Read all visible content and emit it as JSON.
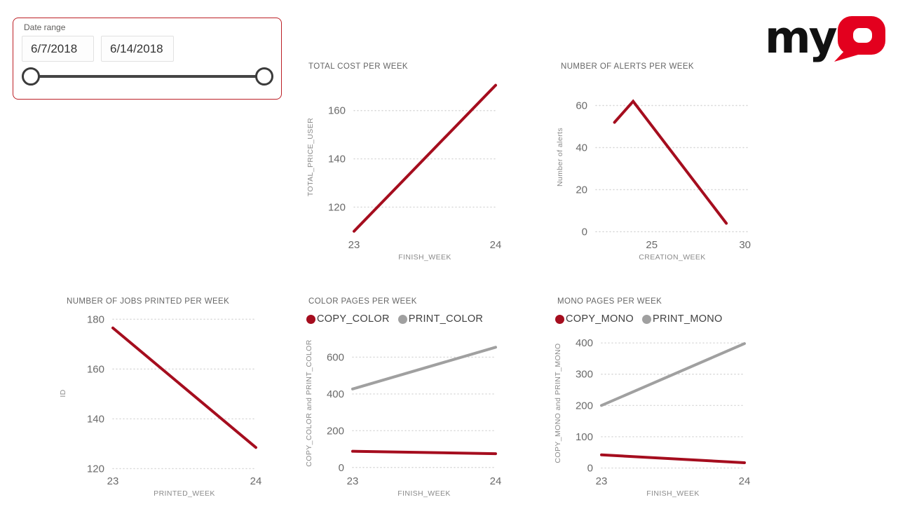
{
  "slicer": {
    "label": "Date range",
    "start_value": "6/7/2018",
    "end_value": "6/14/2018",
    "border_color": "#bc2026"
  },
  "logo": {
    "text_my": "my",
    "text_q": "Q",
    "my_color": "#111111",
    "q_color": "#e3001e"
  },
  "colors": {
    "accent_red": "#a50d1e",
    "series_gray": "#a0a0a0",
    "gridline": "#d6d6d6",
    "title_text": "#666666",
    "tick_text": "#6a6a6a",
    "axis_label_text": "#8a8a8a"
  },
  "chart_data": [
    {
      "id": "total-cost",
      "type": "line",
      "title": "TOTAL COST PER WEEK",
      "xlabel": "FINISH_WEEK",
      "ylabel": "TOTAL_PRICE_USER",
      "xlim": [
        23,
        24
      ],
      "ylim": [
        108.5,
        173
      ],
      "xticks": [
        23,
        24
      ],
      "yticks": [
        120,
        140,
        160
      ],
      "grid": true,
      "legend": null,
      "series": [
        {
          "name": "TOTAL_PRICE_USER",
          "color": "#a50d1e",
          "x": [
            23,
            24
          ],
          "values": [
            110,
            170.5
          ]
        }
      ]
    },
    {
      "id": "alerts",
      "type": "line",
      "title": "NUMBER OF ALERTS PER WEEK",
      "xlabel": "CREATION_WEEK",
      "ylabel": "Number of alerts",
      "xlim": [
        22,
        30.2
      ],
      "ylim": [
        -1.5,
        72.5
      ],
      "xticks": [
        25,
        30
      ],
      "yticks": [
        0,
        20,
        40,
        60
      ],
      "grid": true,
      "legend": null,
      "series": [
        {
          "name": "Number of alerts",
          "color": "#a50d1e",
          "x": [
            23,
            24,
            29
          ],
          "values": [
            52,
            62,
            4
          ]
        }
      ]
    },
    {
      "id": "jobs",
      "type": "line",
      "title": "NUMBER OF JOBS PRINTED PER WEEK",
      "xlabel": "PRINTED_WEEK",
      "ylabel": "ID",
      "xlim": [
        23,
        24
      ],
      "ylim": [
        119,
        181.5
      ],
      "xticks": [
        23,
        24
      ],
      "yticks": [
        120,
        140,
        160,
        180
      ],
      "grid": true,
      "legend": null,
      "series": [
        {
          "name": "ID",
          "color": "#a50d1e",
          "x": [
            23,
            24
          ],
          "values": [
            176.5,
            128.5
          ]
        }
      ]
    },
    {
      "id": "color",
      "type": "line",
      "title": "COLOR PAGES PER WEEK",
      "xlabel": "FINISH_WEEK",
      "ylabel": "COPY_COLOR and PRINT_COLOR",
      "xlim": [
        23,
        24
      ],
      "ylim": [
        -20,
        720
      ],
      "xticks": [
        23,
        24
      ],
      "yticks": [
        0,
        200,
        400,
        600
      ],
      "grid": true,
      "legend": [
        {
          "label": "COPY_COLOR",
          "color": "#a50d1e"
        },
        {
          "label": "PRINT_COLOR",
          "color": "#a0a0a0"
        }
      ],
      "series": [
        {
          "name": "COPY_COLOR",
          "color": "#a50d1e",
          "x": [
            23,
            24
          ],
          "values": [
            88,
            75
          ]
        },
        {
          "name": "PRINT_COLOR",
          "color": "#a0a0a0",
          "x": [
            23,
            24
          ],
          "values": [
            427,
            654
          ]
        }
      ]
    },
    {
      "id": "mono",
      "type": "line",
      "title": "MONO PAGES PER WEEK",
      "xlabel": "FINISH_WEEK",
      "ylabel": "COPY_MONO and PRINT_MONO",
      "xlim": [
        23,
        24
      ],
      "ylim": [
        -10,
        425
      ],
      "xticks": [
        23,
        24
      ],
      "yticks": [
        0,
        100,
        200,
        300,
        400
      ],
      "grid": true,
      "legend": [
        {
          "label": "COPY_MONO",
          "color": "#a50d1e"
        },
        {
          "label": "PRINT_MONO",
          "color": "#a0a0a0"
        }
      ],
      "series": [
        {
          "name": "COPY_MONO",
          "color": "#a50d1e",
          "x": [
            23,
            24
          ],
          "values": [
            42,
            17
          ]
        },
        {
          "name": "PRINT_MONO",
          "color": "#a0a0a0",
          "x": [
            23,
            24
          ],
          "values": [
            200,
            398
          ]
        }
      ]
    }
  ]
}
